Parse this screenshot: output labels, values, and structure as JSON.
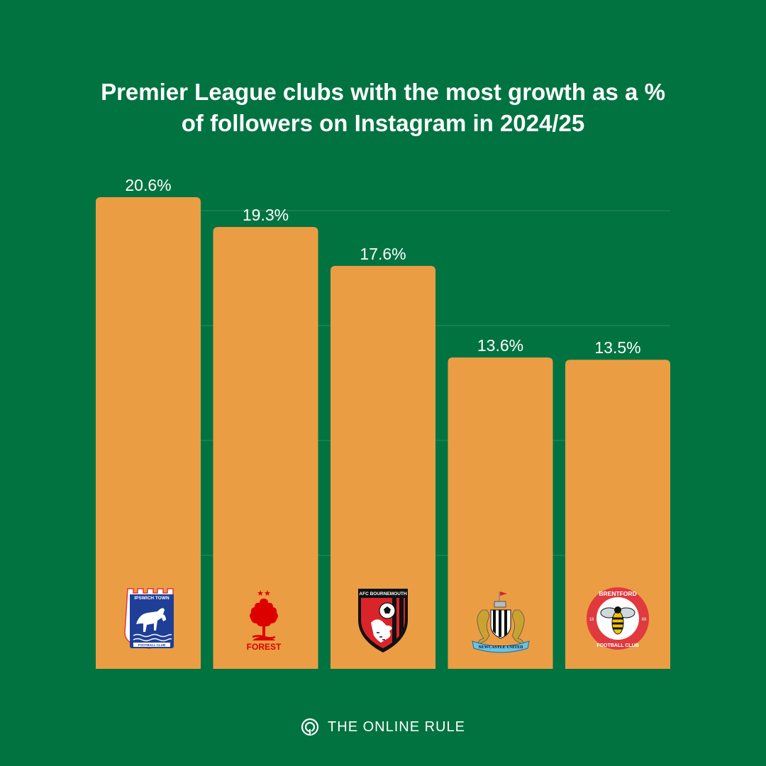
{
  "title_lines": [
    "Premier League clubs with the most growth as a %",
    "of followers on Instagram in 2024/25"
  ],
  "colors": {
    "background": "#007341",
    "bar": "#eb9d44",
    "text": "#ffffff",
    "grid": "#2e8a5c"
  },
  "chart_data": {
    "type": "bar",
    "title": "Premier League clubs with the most growth as a % of followers on Instagram in 2024/25",
    "categories": [
      "Ipswich Town",
      "Nottingham Forest",
      "AFC Bournemouth",
      "Newcastle United",
      "Brentford"
    ],
    "values": [
      20.6,
      19.3,
      17.6,
      13.6,
      13.5
    ],
    "value_labels": [
      "20.6%",
      "19.3%",
      "17.6%",
      "13.6%",
      "13.5%"
    ],
    "category_icons": [
      "ipswich-crest-icon",
      "forest-crest-icon",
      "bournemouth-crest-icon",
      "newcastle-crest-icon",
      "brentford-crest-icon"
    ],
    "crest_text": {
      "ipswich_top": "IPSWICH TOWN",
      "ipswich_bottom": "FOOTBALL CLUB",
      "forest": "FOREST",
      "bournemouth": "AFC BOURNEMOUTH",
      "newcastle": "NEWCASTLE UNITED",
      "brentford_top": "BRENTFORD",
      "brentford_bottom": "FOOTBALL CLUB",
      "brentford_left": "18",
      "brentford_right": "89"
    },
    "ylim": [
      0,
      20.6
    ],
    "grid": true,
    "xlabel": "",
    "ylabel": ""
  },
  "footer": {
    "brand": "THE ONLINE RULE",
    "logo_icon": "the-online-rule-logo-icon"
  }
}
